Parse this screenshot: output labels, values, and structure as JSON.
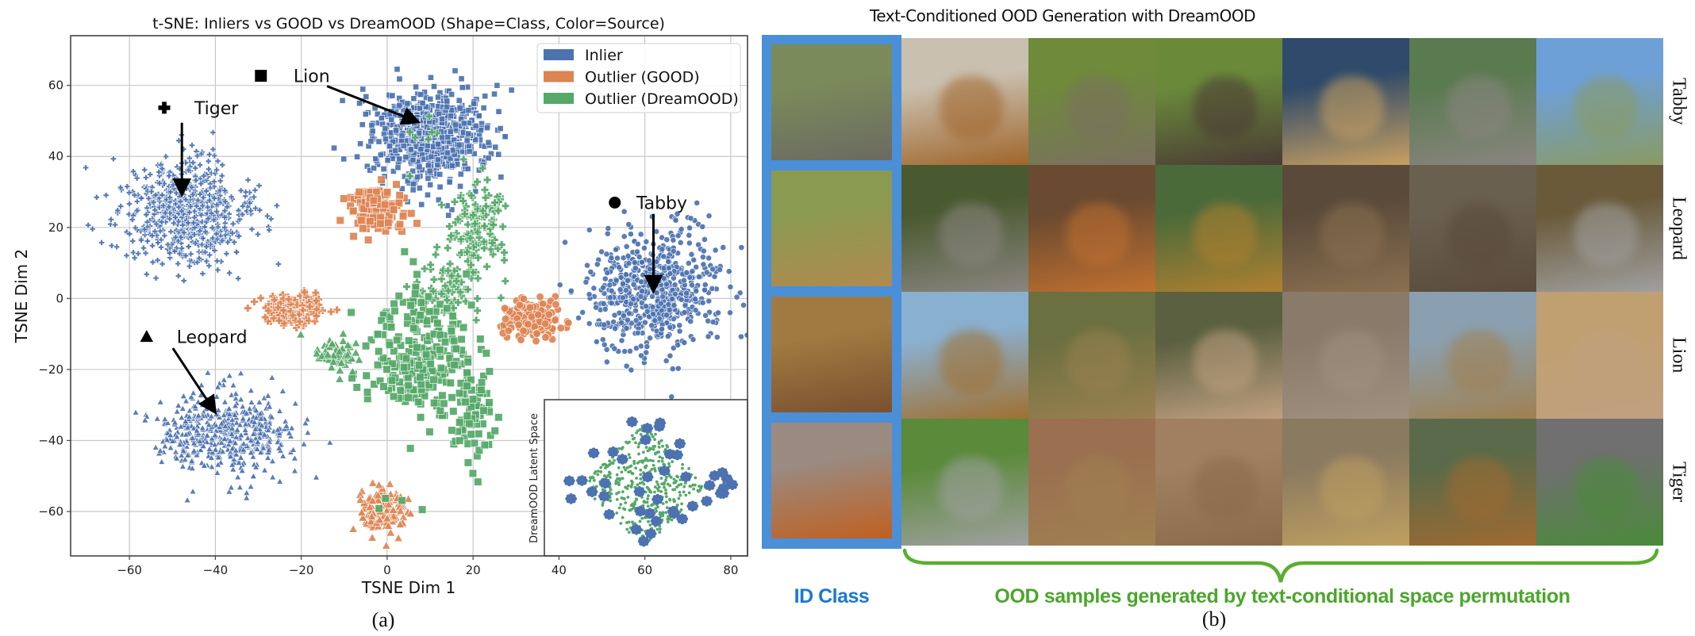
{
  "chart_data": {
    "type": "scatter",
    "title": "t-SNE: Inliers vs GOOD vs DreamOOD (Shape=Class, Color=Source)",
    "xlabel": "TSNE Dim 1",
    "ylabel": "TSNE Dim 2",
    "xlim": [
      -73.7,
      83.9
    ],
    "ylim": [
      -72.5,
      74
    ],
    "xticks": [
      -60,
      -40,
      -20,
      0,
      20,
      40,
      60,
      80
    ],
    "xtick_labels": [
      "−60",
      "−40",
      "−20",
      "0",
      "20",
      "40",
      "60",
      "80"
    ],
    "yticks": [
      -60,
      -40,
      -20,
      0,
      20,
      40,
      60
    ],
    "ytick_labels": [
      "−60",
      "−40",
      "−20",
      "0",
      "20",
      "40",
      "60"
    ],
    "grid": true,
    "legend": {
      "placement": "top-right",
      "entries": [
        {
          "label": "Inlier",
          "color": "#4c72b0"
        },
        {
          "label": "Outlier (GOOD)",
          "color": "#dd8452"
        },
        {
          "label": "Outlier (DreamOOD)",
          "color": "#55a868"
        }
      ]
    },
    "colors": {
      "Inlier": "#4c72b0",
      "GOOD": "#dd8452",
      "DreamOOD": "#55a868"
    },
    "clusters": [
      {
        "class": "Tiger",
        "source": "Inlier",
        "marker": "plus",
        "center": [
          -47,
          24
        ],
        "sd": [
          7.5,
          7.5
        ],
        "n": 650
      },
      {
        "class": "Lion",
        "source": "Inlier",
        "marker": "square",
        "center": [
          10,
          46
        ],
        "sd": [
          7,
          7
        ],
        "n": 650
      },
      {
        "class": "Tabby",
        "source": "Inlier",
        "marker": "circle",
        "center": [
          62,
          2
        ],
        "sd": [
          7.5,
          8.5
        ],
        "n": 650
      },
      {
        "class": "Leopard",
        "source": "Inlier",
        "marker": "triangle",
        "center": [
          -38,
          -38
        ],
        "sd": [
          8,
          5.5
        ],
        "n": 500
      },
      {
        "class": "Lion",
        "source": "GOOD",
        "marker": "square",
        "center": [
          -2,
          25
        ],
        "sd": [
          3.2,
          3
        ],
        "n": 150
      },
      {
        "class": "Tiger",
        "source": "GOOD",
        "marker": "plus",
        "center": [
          -22,
          -3
        ],
        "sd": [
          3.5,
          2.3
        ],
        "n": 150
      },
      {
        "class": "Tabby",
        "source": "GOOD",
        "marker": "circle",
        "center": [
          34,
          -6
        ],
        "sd": [
          3.5,
          2.5
        ],
        "n": 150
      },
      {
        "class": "Leopard",
        "source": "GOOD",
        "marker": "triangle",
        "center": [
          -1,
          -60
        ],
        "sd": [
          2.8,
          3.5
        ],
        "n": 130
      },
      {
        "class": "Tiger",
        "source": "DreamOOD",
        "marker": "plus",
        "center": [
          21,
          20
        ],
        "sd": [
          3.5,
          7
        ],
        "n": 120
      },
      {
        "class": "Tiger",
        "source": "DreamOOD",
        "marker": "plus",
        "center": [
          13,
          2
        ],
        "sd": [
          4,
          4
        ],
        "n": 80
      },
      {
        "class": "Lion",
        "source": "DreamOOD",
        "marker": "square",
        "center": [
          7,
          -15
        ],
        "sd": [
          6,
          9
        ],
        "n": 250
      },
      {
        "class": "Lion",
        "source": "DreamOOD",
        "marker": "square",
        "center": [
          20,
          -33
        ],
        "sd": [
          2.5,
          6
        ],
        "n": 80
      },
      {
        "class": "Leopard",
        "source": "DreamOOD",
        "marker": "triangle",
        "center": [
          -12,
          -16
        ],
        "sd": [
          2.5,
          2.5
        ],
        "n": 60
      },
      {
        "class": "Tiger",
        "source": "DreamOOD",
        "marker": "plus",
        "center": [
          12,
          45
        ],
        "sd": [
          6,
          6
        ],
        "n": 8
      },
      {
        "class": "Lion",
        "source": "DreamOOD",
        "marker": "square",
        "center": [
          3,
          -59
        ],
        "sd": [
          3,
          2
        ],
        "n": 4
      }
    ],
    "annotations": [
      {
        "label": "Tiger",
        "marker": "plus",
        "marker_at": [
          -51.9,
          53.7
        ],
        "text_at": [
          -44.9,
          53.7
        ],
        "arrow_from": [
          -47.8,
          49.5
        ],
        "arrow_to": [
          -47.8,
          29.8
        ]
      },
      {
        "label": "Lion",
        "marker": "square",
        "marker_at": [
          -29.4,
          62.7
        ],
        "text_at": [
          -21.8,
          62.7
        ],
        "arrow_from": [
          -14,
          59.8
        ],
        "arrow_to": [
          6.8,
          49.9
        ]
      },
      {
        "label": "Tabby",
        "marker": "circle",
        "marker_at": [
          53,
          27
        ],
        "text_at": [
          58,
          27
        ],
        "arrow_from": [
          62,
          23.8
        ],
        "arrow_to": [
          62,
          2.6
        ]
      },
      {
        "label": "Leopard",
        "marker": "triangle",
        "marker_at": [
          -56,
          -10.8
        ],
        "text_at": [
          -49,
          -10.8
        ],
        "arrow_from": [
          -49.9,
          -14
        ],
        "arrow_to": [
          -40.3,
          -31.6
        ]
      }
    ],
    "inset": {
      "ylabel": "DreamOOD Latent Space",
      "inlier_blobs": 42,
      "ood_points": 420
    }
  },
  "figure_a": {
    "caption": "(a)"
  },
  "figure_b": {
    "title": "Text-Conditioned OOD Generation with DreamOOD",
    "id_label": "ID Class",
    "ood_label": "OOD samples generated by text-conditional space permutation",
    "caption": "(b)",
    "colors": {
      "id_frame": "#4a8fd8",
      "id_text": "#1a78d2",
      "ood_text": "#4ca62c",
      "brace": "#5aae2e"
    },
    "rows": [
      {
        "label": "Tabby",
        "id_image": [
          "#7a8a5a",
          "#6b6a62"
        ],
        "generated": [
          [
            "#c9c0b0",
            "#a0652a"
          ],
          [
            "#6f8a3a",
            "#7a7060"
          ],
          [
            "#6a8a3a",
            "#4a3a35"
          ],
          [
            "#2f4a6a",
            "#c8a060"
          ],
          [
            "#5a7a50",
            "#8a8580"
          ],
          [
            "#6ea0d8",
            "#8a9a60"
          ]
        ]
      },
      {
        "label": "Leopard",
        "id_image": [
          "#8a9a50",
          "#b08a50"
        ],
        "generated": [
          [
            "#4a5a30",
            "#8a8580"
          ],
          [
            "#6a4a30",
            "#c07030"
          ],
          [
            "#4a6a3a",
            "#b08030"
          ],
          [
            "#5a4a3a",
            "#8a7050"
          ],
          [
            "#6a6050",
            "#5a4a3a"
          ],
          [
            "#6a5a3a",
            "#a0a0a0"
          ]
        ]
      },
      {
        "label": "Lion",
        "id_image": [
          "#a07a40",
          "#7a5030"
        ],
        "generated": [
          [
            "#8ab0d0",
            "#a07030"
          ],
          [
            "#6a7040",
            "#9a8050"
          ],
          [
            "#5a6040",
            "#c0a080"
          ],
          [
            "#8a7a6a",
            "#a09080"
          ],
          [
            "#8aa0b0",
            "#a08050"
          ],
          [
            "#c0a070",
            "#c0a080"
          ]
        ]
      },
      {
        "label": "Tiger",
        "id_image": [
          "#9a8a80",
          "#c06020"
        ],
        "generated": [
          [
            "#5a8a3a",
            "#a0a0a0"
          ],
          [
            "#9a7050",
            "#a08050"
          ],
          [
            "#a08060",
            "#8a6a4a"
          ],
          [
            "#8a7a60",
            "#c0a060"
          ],
          [
            "#5a6a4a",
            "#a06a30"
          ],
          [
            "#707070",
            "#4a8a3a"
          ]
        ]
      }
    ]
  }
}
